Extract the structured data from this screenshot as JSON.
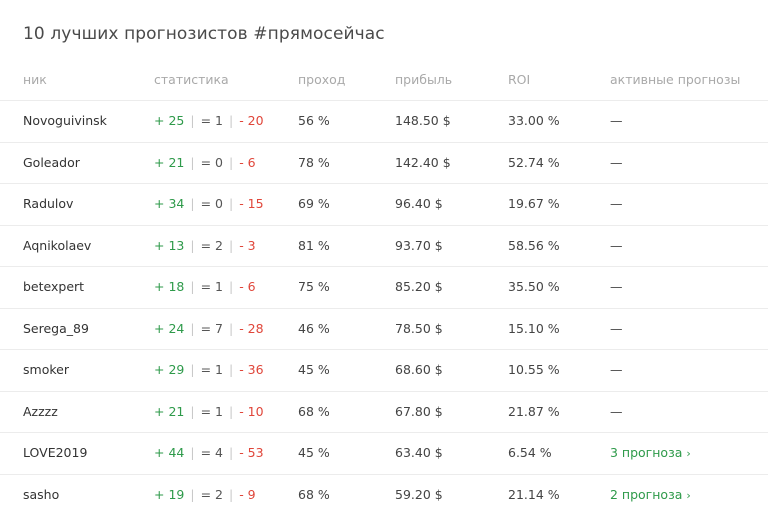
{
  "title": "10 лучших прогнозистов #прямосейчас",
  "columns": {
    "nick": "ник",
    "stats": "статистика",
    "pass": "проход",
    "profit": "прибыль",
    "roi": "ROI",
    "active": "активные прогнозы"
  },
  "colors": {
    "win": "#2e9a4a",
    "loss": "#e0463a",
    "header": "#a9a9a9"
  },
  "rows": [
    {
      "nick": "Novoguivinsk",
      "w": "+ 25",
      "d": "= 1",
      "l": "- 20",
      "pass": "56 %",
      "profit": "148.50 $",
      "roi": "33.00 %",
      "active": "—",
      "active_link": false
    },
    {
      "nick": "Goleador",
      "w": "+ 21",
      "d": "= 0",
      "l": "- 6",
      "pass": "78 %",
      "profit": "142.40 $",
      "roi": "52.74 %",
      "active": "—",
      "active_link": false
    },
    {
      "nick": "Radulov",
      "w": "+ 34",
      "d": "= 0",
      "l": "- 15",
      "pass": "69 %",
      "profit": "96.40 $",
      "roi": "19.67 %",
      "active": "—",
      "active_link": false
    },
    {
      "nick": "Aqnikolaev",
      "w": "+ 13",
      "d": "= 2",
      "l": "- 3",
      "pass": "81 %",
      "profit": "93.70 $",
      "roi": "58.56 %",
      "active": "—",
      "active_link": false
    },
    {
      "nick": "betexpert",
      "w": "+ 18",
      "d": "= 1",
      "l": "- 6",
      "pass": "75 %",
      "profit": "85.20 $",
      "roi": "35.50 %",
      "active": "—",
      "active_link": false
    },
    {
      "nick": "Serega_89",
      "w": "+ 24",
      "d": "= 7",
      "l": "- 28",
      "pass": "46 %",
      "profit": "78.50 $",
      "roi": "15.10 %",
      "active": "—",
      "active_link": false
    },
    {
      "nick": "smoker",
      "w": "+ 29",
      "d": "= 1",
      "l": "- 36",
      "pass": "45 %",
      "profit": "68.60 $",
      "roi": "10.55 %",
      "active": "—",
      "active_link": false
    },
    {
      "nick": "Azzzz",
      "w": "+ 21",
      "d": "= 1",
      "l": "- 10",
      "pass": "68 %",
      "profit": "67.80 $",
      "roi": "21.87 %",
      "active": "—",
      "active_link": false
    },
    {
      "nick": "LOVE2019",
      "w": "+ 44",
      "d": "= 4",
      "l": "- 53",
      "pass": "45 %",
      "profit": "63.40 $",
      "roi": "6.54 %",
      "active": "3 прогноза",
      "active_link": true
    },
    {
      "nick": "sasho",
      "w": "+ 19",
      "d": "= 2",
      "l": "- 9",
      "pass": "68 %",
      "profit": "59.20 $",
      "roi": "21.14 %",
      "active": "2 прогноза",
      "active_link": true
    }
  ]
}
